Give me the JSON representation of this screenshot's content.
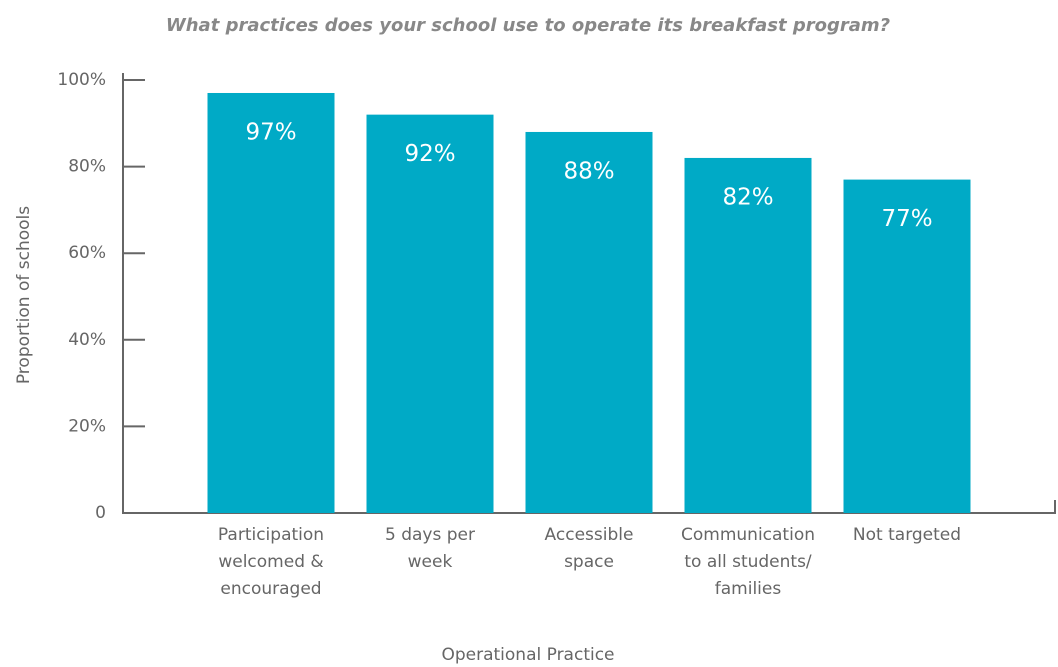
{
  "chart_data": {
    "type": "bar",
    "title": "What practices does your school use to operate its breakfast program?",
    "x_label": "Operational Practice",
    "y_label": "Proportion of schools",
    "categories": [
      "Participation\nwelcomed &\nencouraged",
      "5 days per\nweek",
      "Accessible\nspace",
      "Communication\nto all students/\nfamilies",
      "Not targeted"
    ],
    "values": [
      97,
      92,
      88,
      82,
      77
    ],
    "value_labels": [
      "97%",
      "92%",
      "88%",
      "82%",
      "77%"
    ],
    "color": "#00aac6",
    "ylim": [
      0,
      100
    ],
    "yticks": [
      0,
      {
        "value": 20,
        "label": "20%"
      },
      {
        "value": 40,
        "label": "40%"
      },
      {
        "value": 60,
        "label": "60%"
      },
      {
        "value": 80,
        "label": "80%"
      },
      {
        "value": 100,
        "label": "100%"
      }
    ],
    "grid": false
  }
}
